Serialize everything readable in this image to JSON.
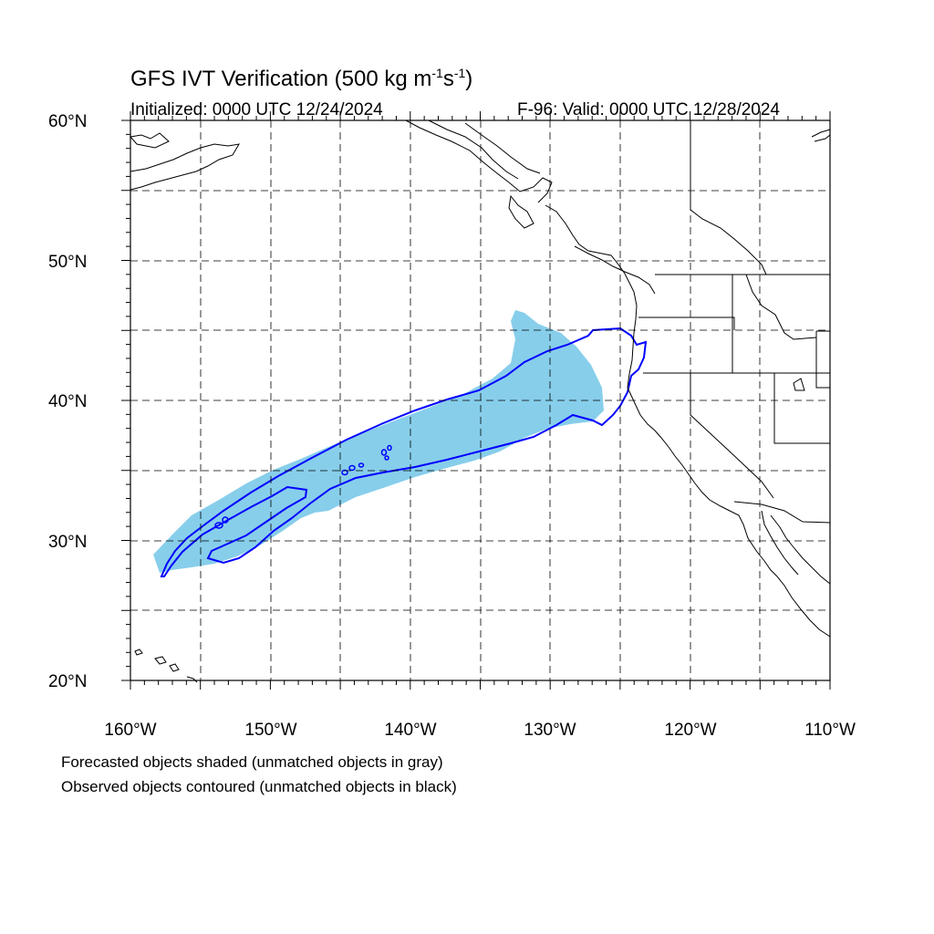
{
  "header": {
    "title_main": "GFS IVT Verification (500 kg m",
    "title_exp1": "-1",
    "title_mid": "s",
    "title_exp2": "-1",
    "title_end": ")",
    "initialized": "Initialized: 0000 UTC 12/24/2024",
    "valid": "F-96: Valid: 0000 UTC 12/28/2024"
  },
  "axes": {
    "lat_labels": [
      "60°N",
      "50°N",
      "40°N",
      "30°N",
      "20°N"
    ],
    "lon_labels": [
      "160°W",
      "150°W",
      "140°W",
      "130°W",
      "120°W",
      "110°W"
    ]
  },
  "legend": {
    "line1": "Forecasted objects shaded (unmatched objects in gray)",
    "line2": "Observed objects contoured (unmatched objects in black)"
  },
  "colors": {
    "forecast_fill": "#87ceeb",
    "observed_contour": "#0000ff",
    "coastline": "#000000",
    "grid": "#000000"
  }
}
